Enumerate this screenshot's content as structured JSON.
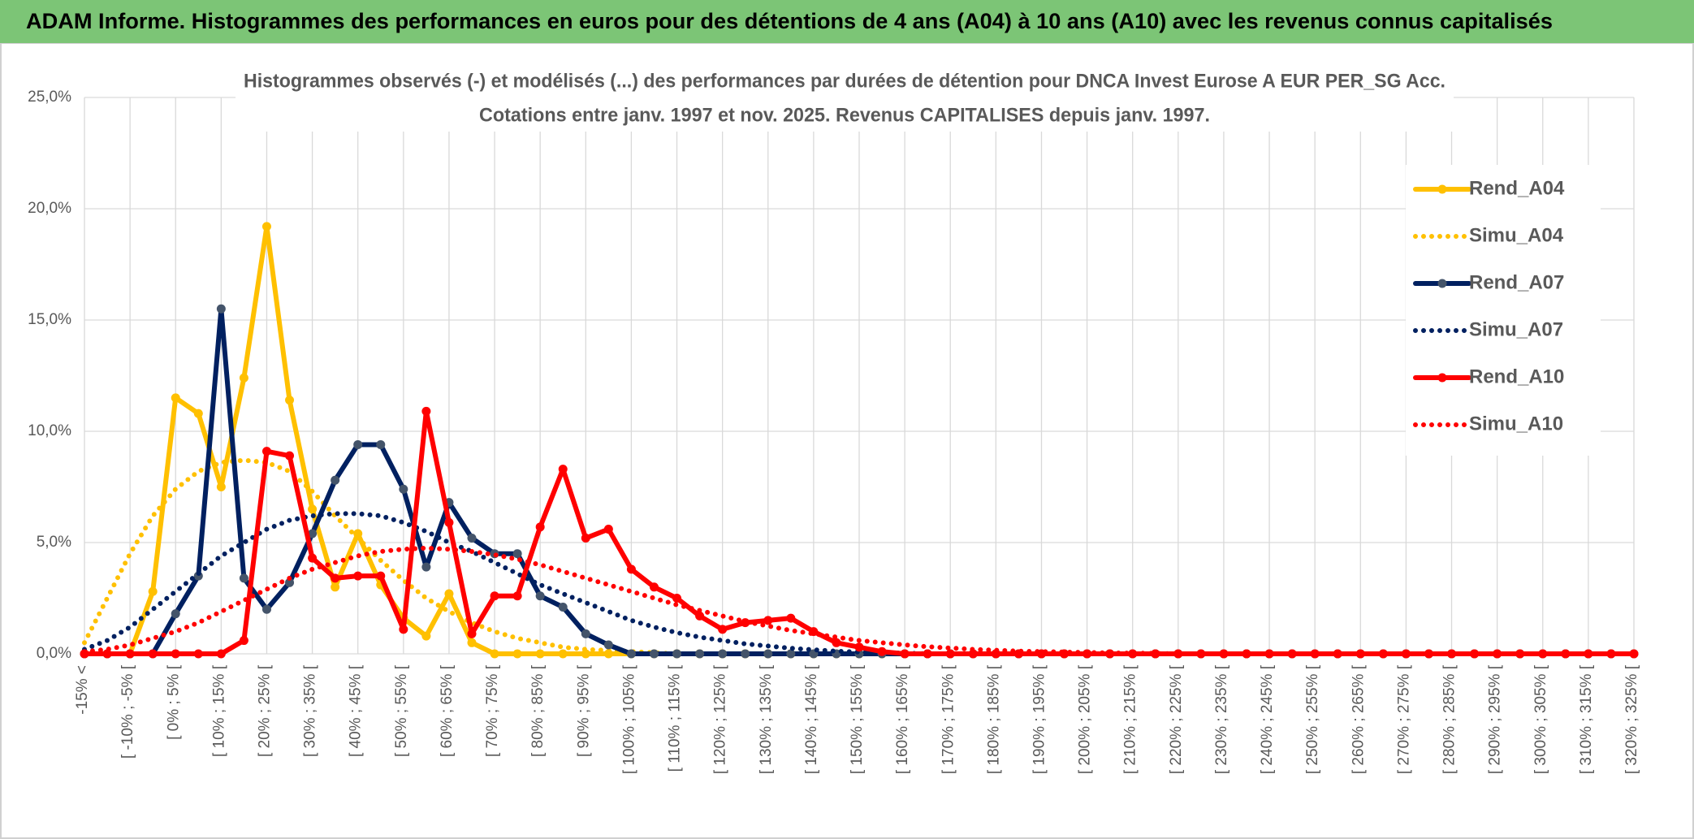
{
  "header": {
    "title": "ADAM Informe. Histogrammes des performances en euros pour des détentions de 4 ans (A04) à 10 ans (A10) avec les revenus connus capitalisés"
  },
  "chart_data": {
    "type": "line",
    "title": "Histogrammes observés (-) et modélisés (...) des performances par durées de détention pour DNCA Invest Eurose A EUR PER_SG Acc.",
    "subtitle": "Cotations entre janv. 1997 et nov. 2025. Revenus CAPITALISES depuis janv. 1997.",
    "categories": [
      "-15% <",
      null,
      "[ -10% ; -5% [",
      null,
      "[ 0% ; 5% [",
      null,
      "[ 10% ; 15% [",
      null,
      "[ 20% ; 25% [",
      null,
      "[ 30% ; 35% [",
      null,
      "[ 40% ; 45% [",
      null,
      "[ 50% ; 55% [",
      null,
      "[ 60% ; 65% [",
      null,
      "[ 70% ; 75% [",
      null,
      "[ 80% ; 85% [",
      null,
      "[ 90% ; 95% [",
      null,
      "[ 100% ; 105% [",
      null,
      "[ 110% ; 115% [",
      null,
      "[ 120% ; 125% [",
      null,
      "[ 130% ; 135% [",
      null,
      "[ 140% ; 145% [",
      null,
      "[ 150% ; 155% [",
      null,
      "[ 160% ; 165% [",
      null,
      "[ 170% ; 175% [",
      null,
      "[ 180% ; 185% [",
      null,
      "[ 190% ; 195% [",
      null,
      "[ 200% ; 205% [",
      null,
      "[ 210% ; 215% [",
      null,
      "[ 220% ; 225% [",
      null,
      "[ 230% ; 235% [",
      null,
      "[ 240% ; 245% [",
      null,
      "[ 250% ; 255% [",
      null,
      "[ 260% ; 265% [",
      null,
      "[ 270% ; 275% [",
      null,
      "[ 280% ; 285% [",
      null,
      "[ 290% ; 295% [",
      null,
      "[ 300% ; 305% [",
      null,
      "[ 310% ; 315% [",
      null,
      "[ 320% ; 325% ["
    ],
    "series": [
      {
        "name": "Rend_A04",
        "color": "#FFC000",
        "style": "solid",
        "markers": true,
        "values": [
          0,
          0,
          0,
          2.8,
          11.5,
          10.8,
          7.5,
          12.4,
          19.2,
          11.4,
          6.5,
          3.0,
          5.4,
          3.1,
          1.6,
          0.8,
          2.7,
          0.5,
          0,
          0,
          0,
          0,
          0,
          0,
          0,
          0,
          0,
          0,
          0,
          0,
          0,
          0,
          0,
          0,
          0,
          0,
          0,
          0,
          0,
          0,
          0,
          0,
          0,
          0,
          0,
          0,
          0,
          0,
          0,
          0,
          0,
          0,
          0,
          0,
          0,
          0,
          0,
          0,
          0,
          0,
          0,
          0,
          0,
          0,
          0,
          0,
          0,
          0,
          0
        ]
      },
      {
        "name": "Simu_A04",
        "color": "#FFC000",
        "style": "dotted",
        "markers": false,
        "values": [
          0.5,
          2.5,
          4.5,
          6.2,
          7.4,
          8.2,
          8.6,
          8.7,
          8.6,
          8.2,
          7.3,
          6.2,
          5.2,
          4.2,
          3.3,
          2.5,
          1.9,
          1.4,
          1.0,
          0.7,
          0.5,
          0.3,
          0.2,
          0.15,
          0.1,
          0.05,
          0,
          0,
          0,
          0,
          0,
          0,
          0,
          0,
          0,
          0,
          0,
          0,
          0,
          0,
          0,
          0,
          0,
          0,
          0,
          0,
          0,
          0,
          0,
          0,
          0,
          0,
          0,
          0,
          0,
          0,
          0,
          0,
          0,
          0,
          0,
          0,
          0,
          0,
          0,
          0,
          0,
          0,
          0
        ]
      },
      {
        "name": "Rend_A07",
        "color": "#002060",
        "marker_color": "#44546A",
        "style": "solid",
        "markers": true,
        "values": [
          0,
          0,
          0,
          0,
          1.8,
          3.5,
          15.5,
          3.4,
          2.0,
          3.2,
          5.4,
          7.8,
          9.4,
          9.4,
          7.4,
          3.9,
          6.8,
          5.2,
          4.5,
          4.5,
          2.6,
          2.1,
          0.9,
          0.4,
          0,
          0,
          0,
          0,
          0,
          0,
          0,
          0,
          0,
          0,
          0,
          0,
          0,
          0,
          0,
          0,
          0,
          0,
          0,
          0,
          0,
          0,
          0,
          0,
          0,
          0,
          0,
          0,
          0,
          0,
          0,
          0,
          0,
          0,
          0,
          0,
          0,
          0,
          0,
          0,
          0,
          0,
          0,
          0,
          0
        ]
      },
      {
        "name": "Simu_A07",
        "color": "#002060",
        "style": "dotted",
        "markers": false,
        "values": [
          0.2,
          0.6,
          1.2,
          2.0,
          2.8,
          3.6,
          4.4,
          5.0,
          5.6,
          6.0,
          6.2,
          6.3,
          6.3,
          6.2,
          5.9,
          5.5,
          5.0,
          4.6,
          4.1,
          3.6,
          3.1,
          2.7,
          2.3,
          1.9,
          1.5,
          1.2,
          0.95,
          0.75,
          0.6,
          0.45,
          0.35,
          0.25,
          0.18,
          0.12,
          0.08,
          0.05,
          0.03,
          0,
          0,
          0,
          0,
          0,
          0,
          0,
          0,
          0,
          0,
          0,
          0,
          0,
          0,
          0,
          0,
          0,
          0,
          0,
          0,
          0,
          0,
          0,
          0,
          0,
          0,
          0,
          0,
          0,
          0,
          0,
          0
        ]
      },
      {
        "name": "Rend_A10",
        "color": "#FF0000",
        "style": "solid",
        "markers": true,
        "values": [
          0,
          0,
          0,
          0,
          0,
          0,
          0,
          0.6,
          9.1,
          8.9,
          4.3,
          3.4,
          3.5,
          3.5,
          1.1,
          10.9,
          5.9,
          0.9,
          2.6,
          2.6,
          5.7,
          8.3,
          5.2,
          5.6,
          3.8,
          3.0,
          2.5,
          1.7,
          1.1,
          1.4,
          1.5,
          1.6,
          1.0,
          0.5,
          0.3,
          0.1,
          0,
          0,
          0,
          0,
          0,
          0,
          0,
          0,
          0,
          0,
          0,
          0,
          0,
          0,
          0,
          0,
          0,
          0,
          0,
          0,
          0,
          0,
          0,
          0,
          0,
          0,
          0,
          0,
          0,
          0,
          0,
          0,
          0
        ]
      },
      {
        "name": "Simu_A10",
        "color": "#FF0000",
        "style": "dotted",
        "markers": false,
        "values": [
          0.1,
          0.2,
          0.4,
          0.7,
          1.0,
          1.4,
          1.9,
          2.4,
          2.9,
          3.4,
          3.8,
          4.1,
          4.4,
          4.6,
          4.7,
          4.75,
          4.7,
          4.6,
          4.45,
          4.25,
          4.0,
          3.7,
          3.4,
          3.1,
          2.8,
          2.5,
          2.2,
          1.95,
          1.7,
          1.45,
          1.25,
          1.05,
          0.9,
          0.75,
          0.6,
          0.5,
          0.4,
          0.32,
          0.26,
          0.2,
          0.16,
          0.12,
          0.1,
          0.08,
          0.06,
          0.04,
          0.03,
          0.02,
          0,
          0,
          0,
          0,
          0,
          0,
          0,
          0,
          0,
          0,
          0,
          0,
          0,
          0,
          0,
          0,
          0,
          0,
          0,
          0,
          0
        ]
      }
    ],
    "ylim": [
      0,
      25
    ],
    "yticks": [
      {
        "value": 0,
        "label": "0,0%"
      },
      {
        "value": 5,
        "label": "5,0%"
      },
      {
        "value": 10,
        "label": "10,0%"
      },
      {
        "value": 15,
        "label": "15,0%"
      },
      {
        "value": 20,
        "label": "20,0%"
      },
      {
        "value": 25,
        "label": "25,0%"
      }
    ],
    "grid": true,
    "legend": "right"
  }
}
